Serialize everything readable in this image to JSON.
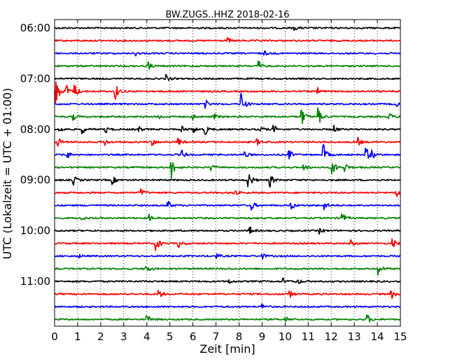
{
  "chart_data": {
    "type": "line",
    "title": "BW.ZUGS..HHZ 2018-02-16",
    "xlabel": "Zeit  [min]",
    "ylabel": "UTC (Lokalzeit = UTC + 01:00)",
    "xlim": [
      0,
      15
    ],
    "x_ticks": [
      "0",
      "1",
      "2",
      "3",
      "4",
      "5",
      "6",
      "7",
      "8",
      "9",
      "10",
      "11",
      "12",
      "13",
      "14",
      "15"
    ],
    "y_tick_labels": [
      "06:00",
      "07:00",
      "08:00",
      "09:00",
      "10:00",
      "11:00"
    ],
    "grid": "vertical dotted",
    "colors": [
      "#000000",
      "#ff0000",
      "#0000ff",
      "#008000"
    ],
    "rows": [
      {
        "start": "06:00",
        "color": "#000000",
        "events": [
          [
            10.4,
            0.6
          ]
        ]
      },
      {
        "start": "06:15",
        "color": "#ff0000",
        "events": [
          [
            7.5,
            0.8
          ]
        ]
      },
      {
        "start": "06:30",
        "color": "#0000ff",
        "events": [
          [
            3.5,
            0.7
          ],
          [
            9.1,
            0.7
          ]
        ]
      },
      {
        "start": "06:45",
        "color": "#008000",
        "events": [
          [
            4.05,
            1.2
          ],
          [
            8.85,
            1.5
          ]
        ]
      },
      {
        "start": "07:00",
        "color": "#000000",
        "events": [
          [
            4.8,
            1.3
          ]
        ]
      },
      {
        "start": "07:15",
        "color": "#ff0000",
        "events": [
          [
            0.05,
            4.0
          ],
          [
            0.5,
            2.2
          ],
          [
            0.85,
            2.5
          ],
          [
            2.6,
            3.0
          ],
          [
            11.4,
            1.0
          ]
        ]
      },
      {
        "start": "07:30",
        "color": "#0000ff",
        "events": [
          [
            6.55,
            1.2
          ],
          [
            8.1,
            3.5
          ],
          [
            14.8,
            0.8
          ]
        ]
      },
      {
        "start": "07:45",
        "color": "#008000",
        "events": [
          [
            0.8,
            1.0
          ],
          [
            4.5,
            0.9
          ],
          [
            6.0,
            0.8
          ],
          [
            6.9,
            1.0
          ],
          [
            10.7,
            3.0
          ],
          [
            11.4,
            3.5
          ],
          [
            14.5,
            1.2
          ]
        ]
      },
      {
        "start": "08:00",
        "color": "#000000",
        "events": [
          [
            0.2,
            1.2
          ],
          [
            1.2,
            1.2
          ],
          [
            2.2,
            1.2
          ],
          [
            3.6,
            1.2
          ],
          [
            5.5,
            1.2
          ],
          [
            6.0,
            1.2
          ],
          [
            6.5,
            2.0
          ],
          [
            8.9,
            1.2
          ],
          [
            9.5,
            1.2
          ],
          [
            12.1,
            1.2
          ]
        ]
      },
      {
        "start": "08:15",
        "color": "#ff0000",
        "events": [
          [
            0.15,
            1.3
          ],
          [
            2.15,
            1.2
          ],
          [
            4.2,
            1.3
          ],
          [
            5.35,
            1.1
          ],
          [
            8.75,
            1.2
          ],
          [
            13.15,
            1.2
          ]
        ]
      },
      {
        "start": "08:30",
        "color": "#0000ff",
        "events": [
          [
            0.5,
            1.5
          ],
          [
            5.5,
            1.5
          ],
          [
            8.2,
            1.4
          ],
          [
            10.15,
            1.5
          ],
          [
            11.65,
            3.2
          ],
          [
            13.5,
            2.2
          ],
          [
            13.75,
            1.3
          ]
        ]
      },
      {
        "start": "08:45",
        "color": "#008000",
        "events": [
          [
            5.05,
            3.5
          ],
          [
            6.75,
            1.1
          ],
          [
            10.8,
            1.1
          ],
          [
            12.05,
            2.5
          ],
          [
            12.6,
            1.2
          ]
        ]
      },
      {
        "start": "09:00",
        "color": "#000000",
        "events": [
          [
            0.8,
            1.5
          ],
          [
            2.5,
            1.2
          ],
          [
            8.4,
            3.0
          ],
          [
            9.35,
            1.8
          ]
        ]
      },
      {
        "start": "09:15",
        "color": "#ff0000",
        "events": [
          [
            3.75,
            1.2
          ],
          [
            7.75,
            1.0
          ],
          [
            14.8,
            1.8
          ]
        ]
      },
      {
        "start": "09:30",
        "color": "#0000ff",
        "events": [
          [
            4.9,
            1.5
          ],
          [
            8.55,
            1.3
          ],
          [
            10.25,
            1.3
          ],
          [
            11.7,
            1.2
          ]
        ]
      },
      {
        "start": "09:45",
        "color": "#008000",
        "events": [
          [
            1.1,
            1.0
          ],
          [
            4.1,
            1.0
          ],
          [
            12.45,
            1.8
          ]
        ]
      },
      {
        "start": "10:00",
        "color": "#000000",
        "events": [
          [
            8.45,
            1.4
          ],
          [
            11.5,
            0.8
          ]
        ]
      },
      {
        "start": "10:15",
        "color": "#ff0000",
        "events": [
          [
            4.4,
            2.3
          ],
          [
            5.35,
            1.4
          ],
          [
            12.85,
            1.0
          ],
          [
            14.65,
            1.4
          ]
        ]
      },
      {
        "start": "10:30",
        "color": "#0000ff",
        "events": [
          [
            1.0,
            0.8
          ],
          [
            7.0,
            0.8
          ],
          [
            9.0,
            0.8
          ]
        ]
      },
      {
        "start": "10:45",
        "color": "#008000",
        "events": [
          [
            3.95,
            1.5
          ],
          [
            14.05,
            1.8
          ]
        ]
      },
      {
        "start": "11:00",
        "color": "#000000",
        "events": [
          [
            7.55,
            0.7
          ],
          [
            9.9,
            0.8
          ],
          [
            10.5,
            1.1
          ]
        ]
      },
      {
        "start": "11:15",
        "color": "#ff0000",
        "events": [
          [
            4.5,
            1.4
          ],
          [
            10.2,
            1.0
          ],
          [
            14.6,
            1.5
          ]
        ]
      },
      {
        "start": "11:30",
        "color": "#0000ff",
        "events": [
          [
            9.0,
            1.0
          ]
        ]
      },
      {
        "start": "11:45",
        "color": "#008000",
        "events": [
          [
            4.0,
            1.4
          ],
          [
            10.0,
            1.0
          ],
          [
            13.55,
            1.6
          ]
        ]
      }
    ]
  }
}
